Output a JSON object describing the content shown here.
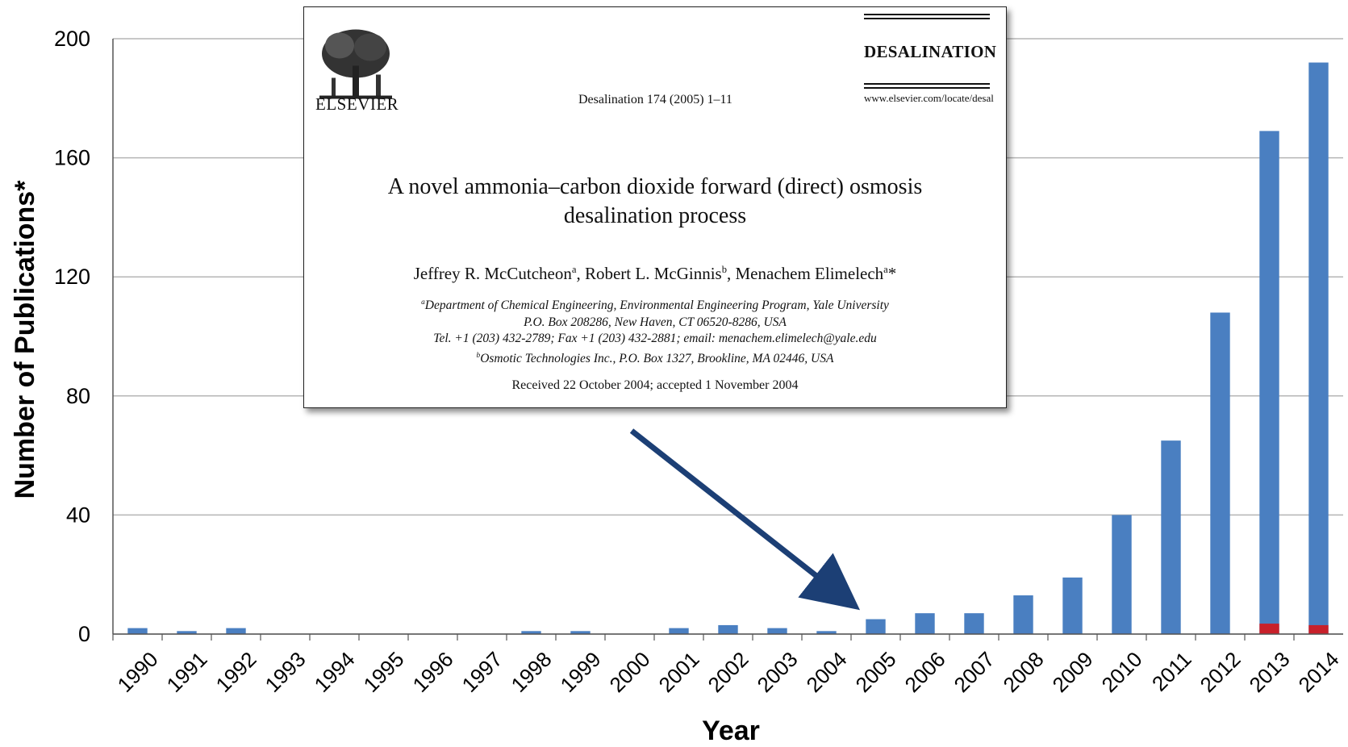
{
  "chart_data": {
    "type": "bar",
    "xlabel": "Year",
    "ylabel": "Number of Publications*",
    "ylim": [
      0,
      200
    ],
    "yticks": [
      "0",
      "40",
      "80",
      "120",
      "160",
      "200"
    ],
    "grid": true,
    "categories": [
      "1990",
      "1991",
      "1992",
      "1993",
      "1994",
      "1995",
      "1996",
      "1997",
      "1998",
      "1999",
      "2000",
      "2001",
      "2002",
      "2003",
      "2004",
      "2005",
      "2006",
      "2007",
      "2008",
      "2009",
      "2010",
      "2011",
      "2012",
      "2013",
      "2014"
    ],
    "series": [
      {
        "values": [
          2,
          1,
          2,
          0,
          0,
          0,
          0,
          0,
          1,
          1,
          0,
          2,
          3,
          2,
          1,
          5,
          7,
          7,
          13,
          19,
          40,
          65,
          108,
          169,
          192
        ]
      },
      {
        "values": [
          0,
          0,
          0,
          0,
          0,
          0,
          0,
          0,
          0,
          0,
          0,
          0,
          0,
          0,
          0,
          0,
          0,
          0,
          0,
          0,
          0,
          0,
          0,
          3.5,
          3
        ]
      }
    ],
    "colors": {
      "bar": "#4a7fc1",
      "highlight": "#c8202a",
      "arrow": "#1c3f75",
      "grid": "#b5b5b5"
    },
    "annotation": {
      "points_to": "2005",
      "publisher": "ELSEVIER",
      "journal": "DESALINATION",
      "citation": "Desalination 174 (2005) 1–11",
      "url": "www.elsevier.com/locate/desal",
      "title_line1": "A novel ammonia–carbon dioxide forward (direct) osmosis",
      "title_line2": "desalination process",
      "authors": {
        "a1": "Jeffrey R. McCutcheon",
        "a1_sup": "a",
        "a2": ", Robert L. McGinnis",
        "a2_sup": "b",
        "a3": ", Menachem Elimelech",
        "a3_sup": "a",
        "a3_star": "*"
      },
      "affiliations": {
        "line1_sup": "a",
        "line1": "Department of Chemical Engineering, Environmental Engineering Program, Yale University",
        "line2": "P.O. Box 208286, New Haven, CT 06520-8286, USA",
        "line3": "Tel. +1 (203) 432-2789; Fax +1 (203) 432-2881; email: menachem.elimelech@yale.edu",
        "line4_sup": "b",
        "line4": "Osmotic Technologies Inc., P.O. Box 1327, Brookline, MA 02446, USA"
      },
      "received": "Received 22 October 2004; accepted 1 November 2004"
    }
  }
}
